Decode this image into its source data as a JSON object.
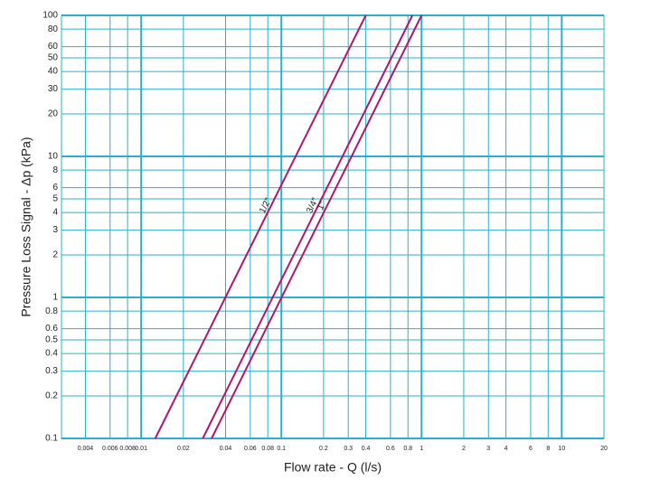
{
  "chart_data": {
    "type": "line",
    "x_label": "Flow rate - Q (l/s)",
    "y_label": "Pressure Loss Signal  - Δp (kPa)",
    "log_x": true,
    "log_y": true,
    "grid": true,
    "grid_color": "#2bb0c8",
    "xlim": [
      0.0027,
      20
    ],
    "ylim": [
      0.1,
      100
    ],
    "xticks": [
      0.004,
      0.006,
      0.008,
      0.01,
      0.02,
      0.04,
      0.06,
      0.08,
      0.1,
      0.2,
      0.3,
      0.4,
      0.6,
      0.8,
      1,
      2,
      3,
      4,
      6,
      8,
      10,
      20
    ],
    "yticks": [
      0.1,
      0.2,
      0.3,
      0.4,
      0.5,
      0.6,
      0.8,
      1,
      2,
      3,
      4,
      5,
      6,
      8,
      10,
      20,
      30,
      40,
      50,
      60,
      80,
      100
    ],
    "series": [
      {
        "name": "1/2\"",
        "color": "#b0176f",
        "x": [
          0.0126,
          0.4
        ],
        "values": [
          0.1,
          100
        ]
      },
      {
        "name": "3/4\"",
        "color": "#b0176f",
        "x": [
          0.0275,
          0.86
        ],
        "values": [
          0.1,
          100
        ]
      },
      {
        "name": "1\"",
        "color": "#b0176f",
        "x": [
          0.0318,
          1.0
        ],
        "values": [
          0.1,
          100
        ]
      }
    ]
  }
}
